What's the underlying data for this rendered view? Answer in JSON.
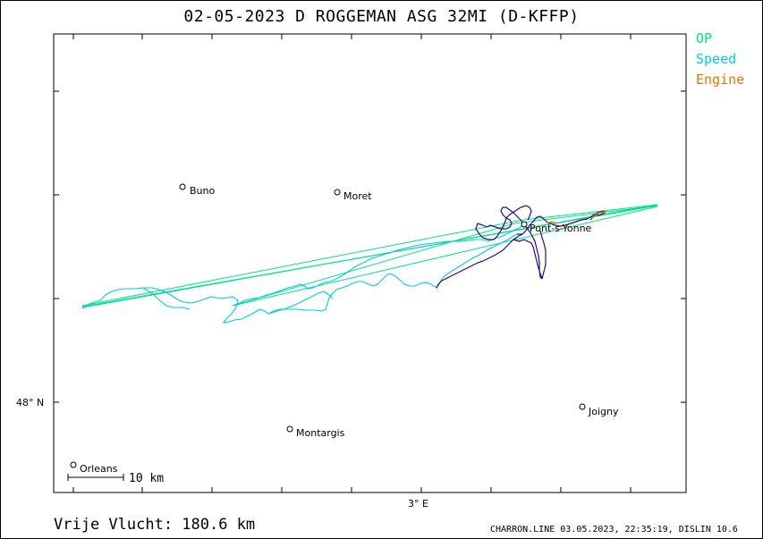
{
  "title": "02-05-2023   D ROGGEMAN   ASG 32MI (D-KFFP)",
  "legend": [
    {
      "label": "OP",
      "color": "#00e08a"
    },
    {
      "label": "Speed",
      "color": "#00c8e8"
    },
    {
      "label": "Engine",
      "color": "#e07800"
    }
  ],
  "axes": {
    "lat_label": "48° N",
    "lon_label": "3° E"
  },
  "places": [
    {
      "name": "Buno"
    },
    {
      "name": "Moret"
    },
    {
      "name": "Pont-s-Yonne"
    },
    {
      "name": "Joigny"
    },
    {
      "name": "Montargis"
    },
    {
      "name": "Orleans"
    }
  ],
  "scale_bar": "10  km",
  "footer": {
    "distance": "Vrije Vlucht:  180.6 km",
    "credit": "CHARRON.LINE 03.05.2023, 22:35:19, DISLIN 10.6"
  },
  "colors": {
    "track": "#2a0a7a",
    "speed": "#00c8e8",
    "op": "#00e08a",
    "engine": "#e07800"
  }
}
